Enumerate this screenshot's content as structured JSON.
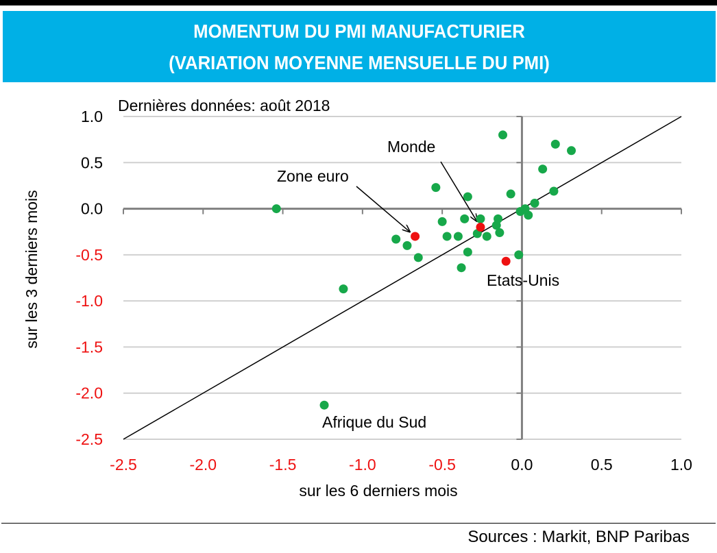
{
  "header": {
    "title_line1": "MOMENTUM DU PMI MANUFACTURIER",
    "title_line2": "(VARIATION MOYENNE MENSUELLE DU PMI)"
  },
  "footer": {
    "sources": "Sources : Markit, BNP Paribas"
  },
  "colors": {
    "header_bg": "#00b0e6",
    "point_green": "#17a84a",
    "point_red": "#ee1111",
    "negative_tick": "#ee1111",
    "positive_tick": "#000000",
    "grid": "#d0d0d0",
    "axis": "#808080"
  },
  "chart_data": {
    "type": "scatter",
    "annotation_note": "Dernières données: août 2018",
    "xlabel": "sur les 6 derniers mois",
    "ylabel": "sur les 3 derniers mois",
    "xlim": [
      -2.5,
      1.0
    ],
    "ylim": [
      -2.5,
      1.0
    ],
    "x_ticks": [
      "-2.5",
      "-2.0",
      "-1.5",
      "-1.0",
      "-0.5",
      "0.0",
      "0.5",
      "1.0"
    ],
    "y_ticks": [
      "1.0",
      "0.5",
      "0.0",
      "-0.5",
      "-1.0",
      "-1.5",
      "-2.0",
      "-2.5"
    ],
    "grid": "horizontal",
    "reference_line": {
      "from": [
        -2.5,
        -2.5
      ],
      "to": [
        1.0,
        1.0
      ]
    },
    "points": [
      {
        "x": -1.54,
        "y": 0.0,
        "color": "green"
      },
      {
        "x": -1.12,
        "y": -0.87,
        "color": "green"
      },
      {
        "x": -1.24,
        "y": -2.13,
        "color": "green",
        "label": "Afrique du Sud"
      },
      {
        "x": -0.79,
        "y": -0.33,
        "color": "green"
      },
      {
        "x": -0.72,
        "y": -0.4,
        "color": "green"
      },
      {
        "x": -0.65,
        "y": -0.53,
        "color": "green"
      },
      {
        "x": -0.67,
        "y": -0.3,
        "color": "red",
        "label": "Zone euro"
      },
      {
        "x": -0.54,
        "y": 0.23,
        "color": "green"
      },
      {
        "x": -0.5,
        "y": -0.14,
        "color": "green"
      },
      {
        "x": -0.47,
        "y": -0.3,
        "color": "green"
      },
      {
        "x": -0.4,
        "y": -0.3,
        "color": "green"
      },
      {
        "x": -0.38,
        "y": -0.64,
        "color": "green"
      },
      {
        "x": -0.36,
        "y": -0.11,
        "color": "green"
      },
      {
        "x": -0.34,
        "y": 0.13,
        "color": "green"
      },
      {
        "x": -0.34,
        "y": -0.47,
        "color": "green"
      },
      {
        "x": -0.28,
        "y": -0.27,
        "color": "green"
      },
      {
        "x": -0.26,
        "y": -0.11,
        "color": "green"
      },
      {
        "x": -0.26,
        "y": -0.2,
        "color": "red",
        "label": "Monde"
      },
      {
        "x": -0.22,
        "y": -0.3,
        "color": "green"
      },
      {
        "x": -0.16,
        "y": -0.18,
        "color": "green"
      },
      {
        "x": -0.15,
        "y": -0.11,
        "color": "green"
      },
      {
        "x": -0.14,
        "y": -0.26,
        "color": "green"
      },
      {
        "x": -0.12,
        "y": 0.8,
        "color": "green"
      },
      {
        "x": -0.1,
        "y": -0.57,
        "color": "red",
        "label": "Etats-Unis"
      },
      {
        "x": -0.07,
        "y": 0.16,
        "color": "green"
      },
      {
        "x": -0.02,
        "y": -0.5,
        "color": "green"
      },
      {
        "x": -0.01,
        "y": -0.03,
        "color": "green"
      },
      {
        "x": 0.02,
        "y": 0.0,
        "color": "green"
      },
      {
        "x": 0.04,
        "y": -0.07,
        "color": "green"
      },
      {
        "x": 0.08,
        "y": 0.06,
        "color": "green"
      },
      {
        "x": 0.13,
        "y": 0.43,
        "color": "green"
      },
      {
        "x": 0.2,
        "y": 0.19,
        "color": "green"
      },
      {
        "x": 0.21,
        "y": 0.7,
        "color": "green"
      },
      {
        "x": 0.31,
        "y": 0.63,
        "color": "green"
      }
    ],
    "annotations": [
      {
        "text": "Zone euro",
        "target_label": "Zone euro",
        "arrow": true
      },
      {
        "text": "Monde",
        "target_label": "Monde",
        "arrow": true
      },
      {
        "text": "Etats-Unis",
        "target_label": "Etats-Unis",
        "arrow": false
      },
      {
        "text": "Afrique du Sud",
        "target_label": "Afrique du Sud",
        "arrow": false
      }
    ]
  }
}
